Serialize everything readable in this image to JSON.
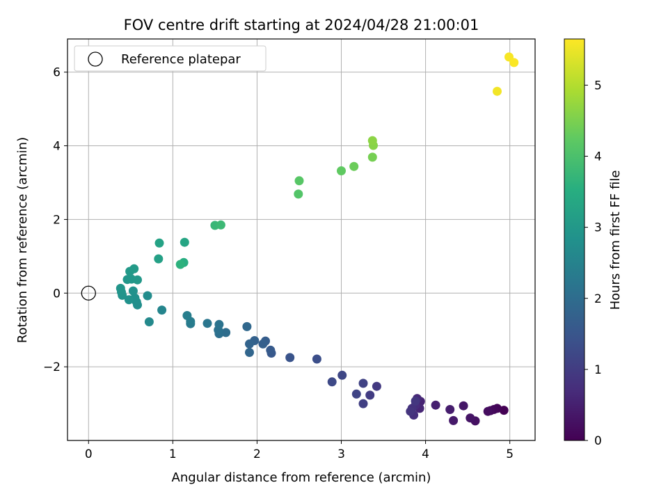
{
  "chart_data": {
    "type": "scatter",
    "title": "FOV centre drift starting at 2024/04/28 21:00:01",
    "xlabel": "Angular distance from reference (arcmin)",
    "ylabel": "Rotation from reference (arcmin)",
    "xlim": [
      -0.25,
      5.3
    ],
    "ylim": [
      -4.0,
      6.9
    ],
    "xticks": [
      0,
      1,
      2,
      3,
      4,
      5
    ],
    "yticks": [
      -2,
      0,
      2,
      4,
      6
    ],
    "ytick_labels": [
      "−2",
      "0",
      "2",
      "4",
      "6"
    ],
    "grid": true,
    "legend": {
      "placement": "top-left",
      "entries": [
        "Reference platepar"
      ]
    },
    "reference_point": {
      "name": "Reference platepar",
      "x": 0,
      "y": 0,
      "marker": "open-circle"
    },
    "colorbar": {
      "label": "Hours from first FF file",
      "colormap": "viridis",
      "range": [
        0,
        5.65
      ],
      "ticks": [
        0,
        1,
        2,
        3,
        4,
        5
      ]
    },
    "points": [
      {
        "x": 4.93,
        "y": -3.18,
        "h": 0.0
      },
      {
        "x": 4.85,
        "y": -3.13,
        "h": 0.05
      },
      {
        "x": 4.81,
        "y": -3.16,
        "h": 0.1
      },
      {
        "x": 4.77,
        "y": -3.19,
        "h": 0.15
      },
      {
        "x": 4.74,
        "y": -3.21,
        "h": 0.2
      },
      {
        "x": 4.59,
        "y": -3.47,
        "h": 0.25
      },
      {
        "x": 4.53,
        "y": -3.39,
        "h": 0.3
      },
      {
        "x": 4.45,
        "y": -3.06,
        "h": 0.35
      },
      {
        "x": 4.33,
        "y": -3.46,
        "h": 0.4
      },
      {
        "x": 4.29,
        "y": -3.16,
        "h": 0.45
      },
      {
        "x": 4.12,
        "y": -3.04,
        "h": 0.5
      },
      {
        "x": 3.94,
        "y": -2.94,
        "h": 0.55
      },
      {
        "x": 3.93,
        "y": -3.13,
        "h": 0.6
      },
      {
        "x": 3.9,
        "y": -2.86,
        "h": 0.65
      },
      {
        "x": 3.88,
        "y": -3.04,
        "h": 0.7
      },
      {
        "x": 3.86,
        "y": -3.31,
        "h": 0.75
      },
      {
        "x": 3.84,
        "y": -3.13,
        "h": 0.8
      },
      {
        "x": 3.82,
        "y": -3.21,
        "h": 0.85
      },
      {
        "x": 3.88,
        "y": -2.93,
        "h": 0.9
      },
      {
        "x": 3.42,
        "y": -2.53,
        "h": 0.95
      },
      {
        "x": 3.34,
        "y": -2.77,
        "h": 1.0
      },
      {
        "x": 3.26,
        "y": -3.0,
        "h": 1.05
      },
      {
        "x": 3.26,
        "y": -2.45,
        "h": 1.1
      },
      {
        "x": 3.18,
        "y": -2.74,
        "h": 1.15
      },
      {
        "x": 3.01,
        "y": -2.23,
        "h": 1.2
      },
      {
        "x": 2.89,
        "y": -2.41,
        "h": 1.25
      },
      {
        "x": 2.71,
        "y": -1.79,
        "h": 1.35
      },
      {
        "x": 2.39,
        "y": -1.75,
        "h": 1.45
      },
      {
        "x": 2.17,
        "y": -1.63,
        "h": 1.55
      },
      {
        "x": 2.16,
        "y": -1.55,
        "h": 1.6
      },
      {
        "x": 2.1,
        "y": -1.3,
        "h": 1.65
      },
      {
        "x": 2.07,
        "y": -1.38,
        "h": 1.7
      },
      {
        "x": 1.97,
        "y": -1.29,
        "h": 1.75
      },
      {
        "x": 1.91,
        "y": -1.38,
        "h": 1.8
      },
      {
        "x": 1.91,
        "y": -1.61,
        "h": 1.85
      },
      {
        "x": 1.88,
        "y": -0.91,
        "h": 1.9
      },
      {
        "x": 1.63,
        "y": -1.07,
        "h": 2.0
      },
      {
        "x": 1.55,
        "y": -1.1,
        "h": 2.05
      },
      {
        "x": 1.54,
        "y": -1.0,
        "h": 2.1
      },
      {
        "x": 1.55,
        "y": -0.85,
        "h": 2.15
      },
      {
        "x": 1.41,
        "y": -0.82,
        "h": 2.2
      },
      {
        "x": 1.21,
        "y": -0.83,
        "h": 2.3
      },
      {
        "x": 1.21,
        "y": -0.77,
        "h": 2.35
      },
      {
        "x": 1.17,
        "y": -0.61,
        "h": 2.4
      },
      {
        "x": 0.87,
        "y": -0.46,
        "h": 2.55
      },
      {
        "x": 0.72,
        "y": -0.78,
        "h": 2.65
      },
      {
        "x": 0.7,
        "y": -0.07,
        "h": 2.7
      },
      {
        "x": 0.58,
        "y": -0.32,
        "h": 2.75
      },
      {
        "x": 0.57,
        "y": -0.24,
        "h": 2.78
      },
      {
        "x": 0.55,
        "y": -0.13,
        "h": 2.8
      },
      {
        "x": 0.53,
        "y": 0.06,
        "h": 2.82
      },
      {
        "x": 0.48,
        "y": -0.18,
        "h": 2.85
      },
      {
        "x": 0.4,
        "y": -0.06,
        "h": 2.88
      },
      {
        "x": 0.39,
        "y": 0.03,
        "h": 2.9
      },
      {
        "x": 0.38,
        "y": 0.13,
        "h": 2.92
      },
      {
        "x": 0.46,
        "y": 0.37,
        "h": 2.95
      },
      {
        "x": 0.51,
        "y": 0.38,
        "h": 2.97
      },
      {
        "x": 0.58,
        "y": 0.36,
        "h": 3.0
      },
      {
        "x": 0.49,
        "y": 0.59,
        "h": 3.02
      },
      {
        "x": 0.54,
        "y": 0.66,
        "h": 3.05
      },
      {
        "x": 0.83,
        "y": 0.93,
        "h": 3.2
      },
      {
        "x": 0.84,
        "y": 1.36,
        "h": 3.25
      },
      {
        "x": 1.14,
        "y": 1.38,
        "h": 3.3
      },
      {
        "x": 1.13,
        "y": 0.83,
        "h": 3.5
      },
      {
        "x": 1.09,
        "y": 0.78,
        "h": 3.6
      },
      {
        "x": 1.5,
        "y": 1.84,
        "h": 3.75
      },
      {
        "x": 1.57,
        "y": 1.85,
        "h": 3.8
      },
      {
        "x": 2.49,
        "y": 2.69,
        "h": 4.1
      },
      {
        "x": 2.5,
        "y": 3.05,
        "h": 4.15
      },
      {
        "x": 3.0,
        "y": 3.32,
        "h": 4.25
      },
      {
        "x": 3.15,
        "y": 3.44,
        "h": 4.35
      },
      {
        "x": 3.37,
        "y": 3.69,
        "h": 4.45
      },
      {
        "x": 3.38,
        "y": 4.01,
        "h": 4.6
      },
      {
        "x": 3.37,
        "y": 4.14,
        "h": 4.65
      },
      {
        "x": 4.85,
        "y": 5.48,
        "h": 5.55
      },
      {
        "x": 4.99,
        "y": 6.41,
        "h": 5.6
      },
      {
        "x": 5.05,
        "y": 6.26,
        "h": 5.62
      }
    ]
  }
}
